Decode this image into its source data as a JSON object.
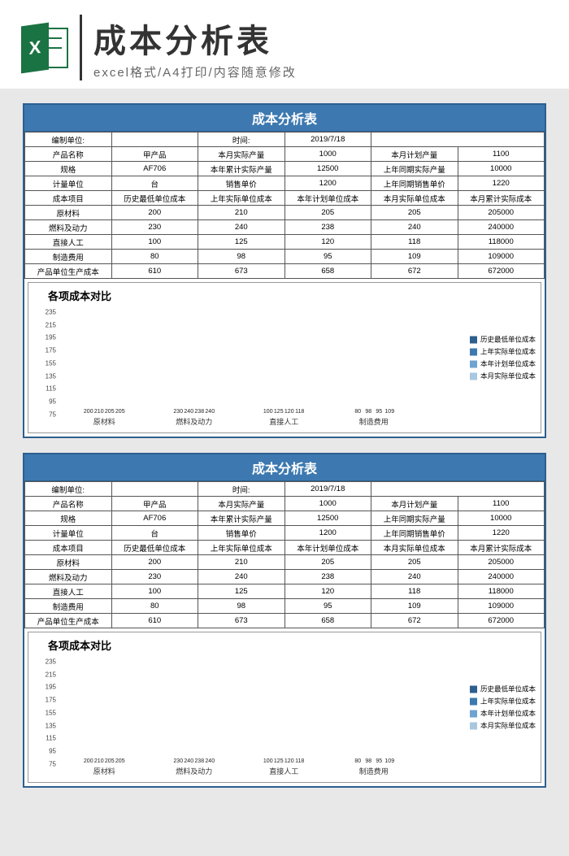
{
  "header": {
    "title": "成本分析表",
    "subtitle": "excel格式/A4打印/内容随意修改",
    "logo_letter": "X"
  },
  "sheet": {
    "title": "成本分析表",
    "info_rows": [
      [
        "编制单位:",
        "",
        "时间:",
        "2019/7/18",
        "",
        ""
      ],
      [
        "产品名称",
        "甲产品",
        "本月实际产量",
        "1000",
        "本月计划产量",
        "1100"
      ],
      [
        "规格",
        "AF706",
        "本年累计实际产量",
        "12500",
        "上年同期实际产量",
        "10000"
      ],
      [
        "计量单位",
        "台",
        "销售单价",
        "1200",
        "上年同期销售单价",
        "1220"
      ]
    ],
    "cost_header": [
      "成本项目",
      "历史最低单位成本",
      "上年实际单位成本",
      "本年计划单位成本",
      "本月实际单位成本",
      "本月累计实际成本"
    ],
    "cost_rows": [
      [
        "原材料",
        "200",
        "210",
        "205",
        "205",
        "205000"
      ],
      [
        "燃料及动力",
        "230",
        "240",
        "238",
        "240",
        "240000"
      ],
      [
        "直接人工",
        "100",
        "125",
        "120",
        "118",
        "118000"
      ],
      [
        "制造费用",
        "80",
        "98",
        "95",
        "109",
        "109000"
      ],
      [
        "产品单位生产成本",
        "610",
        "673",
        "658",
        "672",
        "672000"
      ]
    ]
  },
  "chart": {
    "title": "各项成本对比",
    "categories": [
      "原材料",
      "燃料及动力",
      "直接人工",
      "制造费用"
    ],
    "series": [
      {
        "name": "历史最低单位成本",
        "color": "#2d5f8f",
        "values": [
          200,
          230,
          100,
          80
        ]
      },
      {
        "name": "上年实际单位成本",
        "color": "#3d79b0",
        "values": [
          210,
          240,
          125,
          98
        ]
      },
      {
        "name": "本年计划单位成本",
        "color": "#6fa3d0",
        "values": [
          205,
          238,
          120,
          95
        ]
      },
      {
        "name": "本月实际单位成本",
        "color": "#a9c7e0",
        "values": [
          205,
          240,
          118,
          109
        ]
      }
    ],
    "ymin": 75,
    "ymax": 245,
    "yticks": [
      75,
      95,
      115,
      135,
      155,
      175,
      195,
      215,
      235
    ],
    "bg": "#ffffff"
  }
}
